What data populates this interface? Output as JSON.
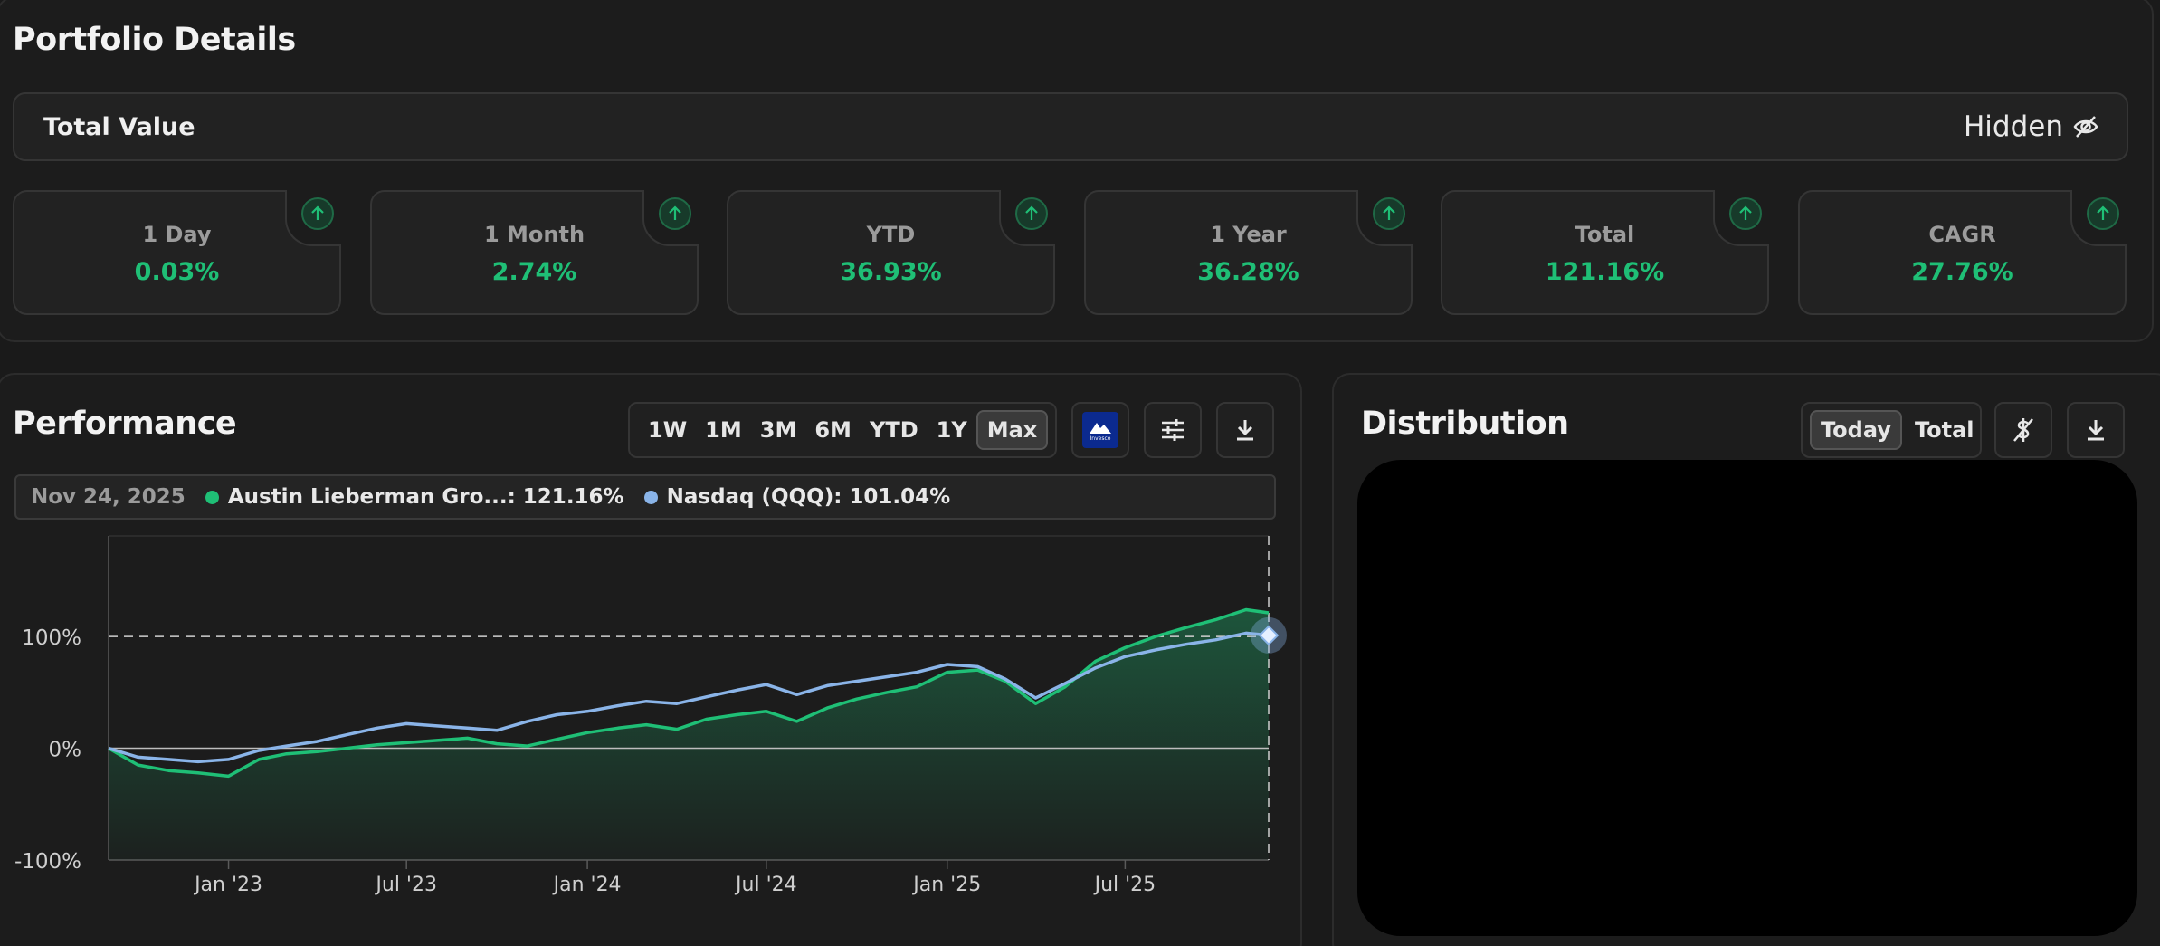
{
  "page": {
    "title": "Portfolio Details"
  },
  "total": {
    "label": "Total Value",
    "value": "Hidden"
  },
  "stats": [
    {
      "label": "1 Day",
      "value": "0.03%"
    },
    {
      "label": "1 Month",
      "value": "2.74%"
    },
    {
      "label": "YTD",
      "value": "36.93%"
    },
    {
      "label": "1 Year",
      "value": "36.28%"
    },
    {
      "label": "Total",
      "value": "121.16%"
    },
    {
      "label": "CAGR",
      "value": "27.76%"
    }
  ],
  "performance": {
    "title": "Performance",
    "ranges": [
      "1W",
      "1M",
      "3M",
      "6M",
      "YTD",
      "1Y",
      "Max"
    ],
    "active_range": "Max",
    "brand_icon_text": "Invesco",
    "tooltip": {
      "date": "Nov 24, 2025",
      "series": [
        {
          "label": "Austin Lieberman Gro...: 121.16%",
          "color": "#1fbf76"
        },
        {
          "label": "Nasdaq (QQQ): 101.04%",
          "color": "#8ab4e8"
        }
      ]
    }
  },
  "distribution": {
    "title": "Distribution",
    "toggles": [
      "Today",
      "Total"
    ],
    "active_toggle": "Today"
  },
  "chart_data": {
    "type": "line",
    "ylim": [
      -100,
      190
    ],
    "y_ticks": [
      {
        "value": 100,
        "label": "100%"
      },
      {
        "value": 0,
        "label": "0%"
      },
      {
        "value": -100,
        "label": "-100%"
      }
    ],
    "x_range": [
      "2022-09-01",
      "2025-11-24"
    ],
    "x_ticks": [
      {
        "date": "2023-01-01",
        "label": "Jan '23"
      },
      {
        "date": "2023-07-01",
        "label": "Jul '23"
      },
      {
        "date": "2024-01-01",
        "label": "Jan '24"
      },
      {
        "date": "2024-07-01",
        "label": "Jul '24"
      },
      {
        "date": "2025-01-01",
        "label": "Jan '25"
      },
      {
        "date": "2025-07-01",
        "label": "Jul '25"
      }
    ],
    "reference_line": 100,
    "series": [
      {
        "name": "Austin Lieberman Gro...",
        "color": "#1fbf76",
        "x": [
          "2022-09-01",
          "2022-10-01",
          "2022-11-01",
          "2022-12-01",
          "2023-01-01",
          "2023-02-01",
          "2023-03-01",
          "2023-04-01",
          "2023-05-01",
          "2023-06-01",
          "2023-07-01",
          "2023-08-01",
          "2023-09-01",
          "2023-10-01",
          "2023-11-01",
          "2023-12-01",
          "2024-01-01",
          "2024-02-01",
          "2024-03-01",
          "2024-04-01",
          "2024-05-01",
          "2024-06-01",
          "2024-07-01",
          "2024-08-01",
          "2024-09-01",
          "2024-10-01",
          "2024-11-01",
          "2024-12-01",
          "2025-01-01",
          "2025-02-01",
          "2025-03-01",
          "2025-04-01",
          "2025-05-01",
          "2025-06-01",
          "2025-07-01",
          "2025-08-01",
          "2025-09-01",
          "2025-10-01",
          "2025-11-01",
          "2025-11-24"
        ],
        "values": [
          0,
          -15,
          -20,
          -22,
          -25,
          -10,
          -5,
          -3,
          0,
          3,
          5,
          7,
          9,
          4,
          2,
          8,
          14,
          18,
          21,
          17,
          26,
          30,
          33,
          24,
          36,
          44,
          50,
          55,
          68,
          70,
          60,
          40,
          55,
          78,
          90,
          100,
          108,
          115,
          124,
          121.16
        ]
      },
      {
        "name": "Nasdaq (QQQ)",
        "color": "#8ab4e8",
        "x": [
          "2022-09-01",
          "2022-10-01",
          "2022-11-01",
          "2022-12-01",
          "2023-01-01",
          "2023-02-01",
          "2023-03-01",
          "2023-04-01",
          "2023-05-01",
          "2023-06-01",
          "2023-07-01",
          "2023-08-01",
          "2023-09-01",
          "2023-10-01",
          "2023-11-01",
          "2023-12-01",
          "2024-01-01",
          "2024-02-01",
          "2024-03-01",
          "2024-04-01",
          "2024-05-01",
          "2024-06-01",
          "2024-07-01",
          "2024-08-01",
          "2024-09-01",
          "2024-10-01",
          "2024-11-01",
          "2024-12-01",
          "2025-01-01",
          "2025-02-01",
          "2025-03-01",
          "2025-04-01",
          "2025-05-01",
          "2025-06-01",
          "2025-07-01",
          "2025-08-01",
          "2025-09-01",
          "2025-10-01",
          "2025-11-01",
          "2025-11-24"
        ],
        "values": [
          0,
          -8,
          -10,
          -12,
          -10,
          -2,
          2,
          6,
          12,
          18,
          22,
          20,
          18,
          16,
          24,
          30,
          33,
          38,
          42,
          40,
          46,
          52,
          57,
          48,
          56,
          60,
          64,
          68,
          75,
          73,
          62,
          45,
          58,
          72,
          82,
          88,
          93,
          97,
          103,
          101.04
        ]
      }
    ]
  }
}
